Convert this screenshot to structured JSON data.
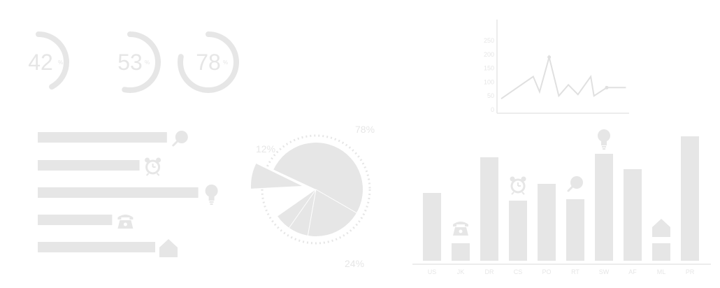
{
  "colors": {
    "primary": "#e6e6e6",
    "line": "#e0e0e0",
    "text": "#e6e6e6",
    "tick": "#e6e6e6",
    "background": "#ffffff"
  },
  "chart_data": [
    {
      "type": "progress-rings",
      "items": [
        {
          "value": 42,
          "unit": "%"
        },
        {
          "value": 53,
          "unit": "%"
        },
        {
          "value": 78,
          "unit": "%"
        }
      ]
    },
    {
      "type": "line",
      "yticks": [
        0,
        50,
        100,
        150,
        200,
        250
      ],
      "ylim": [
        0,
        250
      ],
      "points": [
        {
          "x": 0,
          "y": 40
        },
        {
          "x": 1,
          "y": 120
        },
        {
          "x": 1.2,
          "y": 65
        },
        {
          "x": 1.5,
          "y": 190
        },
        {
          "x": 1.8,
          "y": 50
        },
        {
          "x": 2.1,
          "y": 90
        },
        {
          "x": 2.4,
          "y": 55
        },
        {
          "x": 2.8,
          "y": 120
        },
        {
          "x": 2.9,
          "y": 50
        },
        {
          "x": 3.3,
          "y": 80
        },
        {
          "x": 3.4,
          "y": 80
        },
        {
          "x": 3.9,
          "y": 80
        }
      ],
      "xlim": [
        0,
        4
      ]
    },
    {
      "type": "bar",
      "orientation": "horizontal",
      "values": [
        0.66,
        0.52,
        0.82,
        0.38,
        0.6
      ],
      "icons": [
        "magnifier-icon",
        "alarm-clock-icon",
        "lightbulb-icon",
        "telephone-icon",
        "house-icon"
      ]
    },
    {
      "type": "pie",
      "slices": [
        {
          "label": "78%",
          "value": 78
        },
        {
          "label": "12%",
          "value": 12,
          "exploded": true
        },
        {
          "label": "24%",
          "value": 24
        }
      ]
    },
    {
      "type": "bar",
      "orientation": "vertical",
      "categories": [
        "US",
        "JK",
        "DR",
        "CS",
        "PO",
        "RT",
        "SW",
        "AF",
        "ML",
        "PR"
      ],
      "values": [
        97,
        25,
        148,
        86,
        110,
        88,
        153,
        131,
        25,
        178
      ],
      "ylim": [
        0,
        180
      ],
      "icons": [
        null,
        "telephone-icon",
        null,
        "alarm-clock-icon",
        null,
        "magnifier-icon",
        "lightbulb-icon",
        null,
        "house-icon",
        null
      ]
    }
  ]
}
